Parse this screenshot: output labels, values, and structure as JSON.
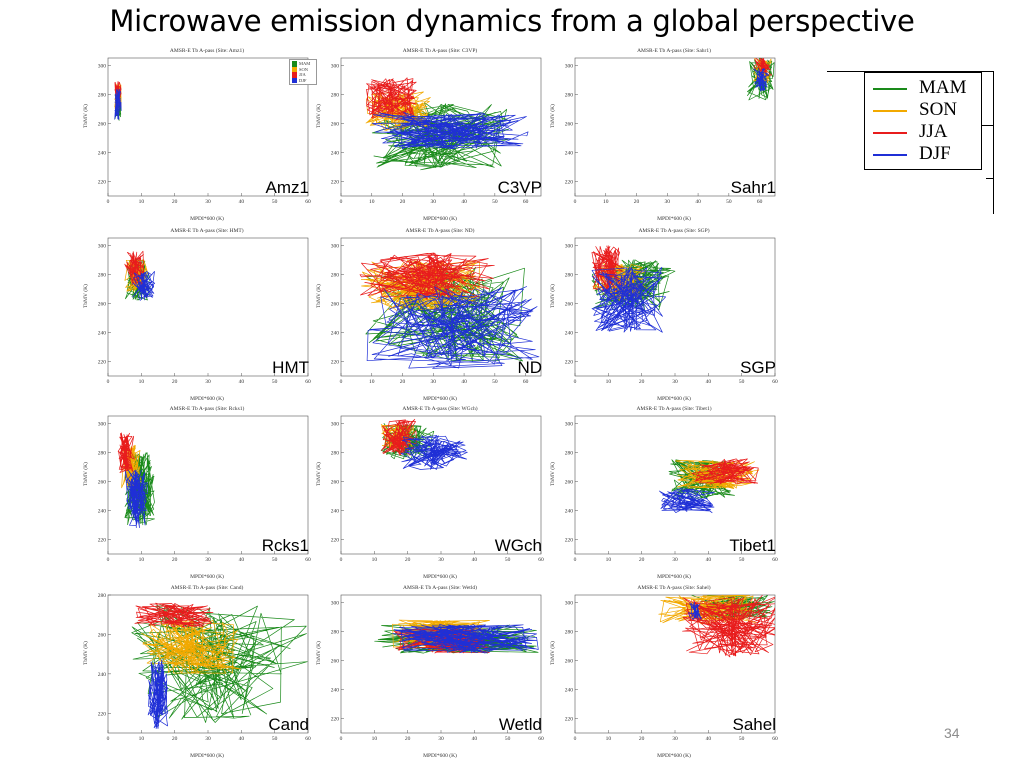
{
  "slide": {
    "title": "Microwave emission dynamics from a global perspective",
    "page_number": "34"
  },
  "legend": {
    "items": [
      {
        "label": "MAM",
        "color": "#1a8a1a"
      },
      {
        "label": "SON",
        "color": "#f2a900"
      },
      {
        "label": "JJA",
        "color": "#e81c1c"
      },
      {
        "label": "DJF",
        "color": "#1f2fd6"
      }
    ]
  },
  "axes": {
    "xlabel": "MPDI*600 (K)",
    "ylabel": "TbMV (K)"
  },
  "chart_data": [
    {
      "type": "line",
      "title": "AMSR-E Tb A-pass (Site: Amz1)",
      "site": "Amz1",
      "xlim": [
        0,
        60
      ],
      "ylim": [
        210,
        305
      ],
      "xticks": [
        0,
        10,
        20,
        30,
        40,
        50,
        60
      ],
      "yticks": [
        220,
        240,
        260,
        280,
        300
      ],
      "mini_legend": true,
      "clusters": {
        "MAM": {
          "x": [
            2,
            4
          ],
          "y": [
            262,
            285
          ]
        },
        "SON": {
          "x": [
            2,
            4
          ],
          "y": [
            270,
            288
          ]
        },
        "JJA": {
          "x": [
            2,
            4
          ],
          "y": [
            270,
            289
          ]
        },
        "DJF": {
          "x": [
            2,
            4
          ],
          "y": [
            262,
            284
          ]
        }
      }
    },
    {
      "type": "line",
      "title": "AMSR-E Tb A-pass (Site: C3VP)",
      "site": "C3VP",
      "xlim": [
        0,
        65
      ],
      "ylim": [
        210,
        305
      ],
      "xticks": [
        0,
        10,
        20,
        30,
        40,
        50,
        60
      ],
      "yticks": [
        220,
        240,
        260,
        280,
        300
      ],
      "clusters": {
        "MAM": {
          "x": [
            10,
            55
          ],
          "y": [
            228,
            275
          ]
        },
        "SON": {
          "x": [
            8,
            30
          ],
          "y": [
            255,
            282
          ]
        },
        "JJA": {
          "x": [
            8,
            25
          ],
          "y": [
            262,
            292
          ]
        },
        "DJF": {
          "x": [
            10,
            62
          ],
          "y": [
            242,
            268
          ]
        }
      }
    },
    {
      "type": "line",
      "title": "AMSR-E Tb A-pass (Site: Sahr1)",
      "site": "Sahr1",
      "xlim": [
        0,
        65
      ],
      "ylim": [
        210,
        305
      ],
      "xticks": [
        0,
        10,
        20,
        30,
        40,
        50,
        60
      ],
      "yticks": [
        220,
        240,
        260,
        280,
        300
      ],
      "clusters": {
        "MAM": {
          "x": [
            56,
            65
          ],
          "y": [
            276,
            305
          ]
        },
        "SON": {
          "x": [
            58,
            64
          ],
          "y": [
            288,
            305
          ]
        },
        "JJA": {
          "x": [
            58,
            64
          ],
          "y": [
            293,
            306
          ]
        },
        "DJF": {
          "x": [
            58,
            63
          ],
          "y": [
            282,
            298
          ]
        }
      }
    },
    {
      "type": "line",
      "title": "AMSR-E Tb A-pass (Site: HMT)",
      "site": "HMT",
      "xlim": [
        0,
        60
      ],
      "ylim": [
        210,
        305
      ],
      "xticks": [
        0,
        10,
        20,
        30,
        40,
        50,
        60
      ],
      "yticks": [
        220,
        240,
        260,
        280,
        300
      ],
      "clusters": {
        "MAM": {
          "x": [
            5,
            13
          ],
          "y": [
            262,
            292
          ]
        },
        "SON": {
          "x": [
            5,
            12
          ],
          "y": [
            268,
            290
          ]
        },
        "JJA": {
          "x": [
            5,
            11
          ],
          "y": [
            272,
            296
          ]
        },
        "DJF": {
          "x": [
            7,
            15
          ],
          "y": [
            262,
            282
          ]
        }
      }
    },
    {
      "type": "line",
      "title": "AMSR-E Tb A-pass (Site: ND)",
      "site": "ND",
      "xlim": [
        0,
        65
      ],
      "ylim": [
        210,
        305
      ],
      "xticks": [
        0,
        10,
        20,
        30,
        40,
        50,
        60
      ],
      "yticks": [
        220,
        240,
        260,
        280,
        300
      ],
      "clusters": {
        "MAM": {
          "x": [
            8,
            60
          ],
          "y": [
            220,
            285
          ]
        },
        "SON": {
          "x": [
            6,
            45
          ],
          "y": [
            255,
            290
          ]
        },
        "JJA": {
          "x": [
            6,
            50
          ],
          "y": [
            262,
            295
          ]
        },
        "DJF": {
          "x": [
            8,
            65
          ],
          "y": [
            215,
            272
          ]
        }
      }
    },
    {
      "type": "line",
      "title": "AMSR-E Tb A-pass (Site: SGP)",
      "site": "SGP",
      "xlim": [
        0,
        60
      ],
      "ylim": [
        210,
        305
      ],
      "xticks": [
        0,
        10,
        20,
        30,
        40,
        50,
        60
      ],
      "yticks": [
        220,
        240,
        260,
        280,
        300
      ],
      "clusters": {
        "MAM": {
          "x": [
            5,
            30
          ],
          "y": [
            255,
            290
          ]
        },
        "SON": {
          "x": [
            5,
            22
          ],
          "y": [
            262,
            288
          ]
        },
        "JJA": {
          "x": [
            5,
            15
          ],
          "y": [
            268,
            300
          ]
        },
        "DJF": {
          "x": [
            5,
            28
          ],
          "y": [
            240,
            285
          ]
        }
      }
    },
    {
      "type": "line",
      "title": "AMSR-E Tb A-pass (Site: Rcks1)",
      "site": "Rcks1",
      "xlim": [
        0,
        60
      ],
      "ylim": [
        210,
        305
      ],
      "xticks": [
        0,
        10,
        20,
        30,
        40,
        50,
        60
      ],
      "yticks": [
        220,
        240,
        260,
        280,
        300
      ],
      "clusters": {
        "MAM": {
          "x": [
            5,
            14
          ],
          "y": [
            230,
            280
          ]
        },
        "SON": {
          "x": [
            4,
            10
          ],
          "y": [
            255,
            285
          ]
        },
        "JJA": {
          "x": [
            3,
            8
          ],
          "y": [
            265,
            295
          ]
        },
        "DJF": {
          "x": [
            5,
            12
          ],
          "y": [
            228,
            268
          ]
        }
      }
    },
    {
      "type": "line",
      "title": "AMSR-E Tb A-pass (Site: WGch)",
      "site": "WGch",
      "xlim": [
        0,
        60
      ],
      "ylim": [
        210,
        305
      ],
      "xticks": [
        0,
        10,
        20,
        30,
        40,
        50,
        60
      ],
      "yticks": [
        220,
        240,
        260,
        280,
        300
      ],
      "clusters": {
        "MAM": {
          "x": [
            12,
            28
          ],
          "y": [
            275,
            300
          ]
        },
        "SON": {
          "x": [
            12,
            22
          ],
          "y": [
            282,
            300
          ]
        },
        "JJA": {
          "x": [
            12,
            23
          ],
          "y": [
            278,
            303
          ]
        },
        "DJF": {
          "x": [
            18,
            38
          ],
          "y": [
            268,
            292
          ]
        }
      }
    },
    {
      "type": "line",
      "title": "AMSR-E Tb A-pass (Site: Tibet1)",
      "site": "Tibet1",
      "xlim": [
        0,
        60
      ],
      "ylim": [
        210,
        305
      ],
      "xticks": [
        0,
        10,
        20,
        30,
        40,
        50,
        60
      ],
      "yticks": [
        220,
        240,
        260,
        280,
        300
      ],
      "clusters": {
        "MAM": {
          "x": [
            28,
            48
          ],
          "y": [
            248,
            275
          ]
        },
        "SON": {
          "x": [
            30,
            57
          ],
          "y": [
            255,
            275
          ]
        },
        "JJA": {
          "x": [
            34,
            55
          ],
          "y": [
            258,
            276
          ]
        },
        "DJF": {
          "x": [
            25,
            42
          ],
          "y": [
            238,
            255
          ]
        }
      }
    },
    {
      "type": "line",
      "title": "AMSR-E Tb A-pass (Site: Cand)",
      "site": "Cand",
      "xlim": [
        0,
        60
      ],
      "ylim": [
        210,
        280
      ],
      "xticks": [
        0,
        10,
        20,
        30,
        40,
        50,
        60
      ],
      "yticks": [
        220,
        240,
        260,
        280
      ],
      "clusters": {
        "MAM": {
          "x": [
            5,
            60
          ],
          "y": [
            215,
            275
          ]
        },
        "SON": {
          "x": [
            10,
            40
          ],
          "y": [
            240,
            268
          ]
        },
        "JJA": {
          "x": [
            8,
            32
          ],
          "y": [
            263,
            276
          ]
        },
        "DJF": {
          "x": [
            12,
            18
          ],
          "y": [
            212,
            248
          ]
        }
      }
    },
    {
      "type": "line",
      "title": "AMSR-E Tb A-pass (Site: Wetld)",
      "site": "Wetld",
      "xlim": [
        0,
        60
      ],
      "ylim": [
        210,
        305
      ],
      "xticks": [
        0,
        10,
        20,
        30,
        40,
        50,
        60
      ],
      "yticks": [
        220,
        240,
        260,
        280,
        300
      ],
      "clusters": {
        "MAM": {
          "x": [
            10,
            60
          ],
          "y": [
            265,
            285
          ]
        },
        "SON": {
          "x": [
            15,
            45
          ],
          "y": [
            268,
            288
          ]
        },
        "JJA": {
          "x": [
            15,
            45
          ],
          "y": [
            265,
            282
          ]
        },
        "DJF": {
          "x": [
            15,
            60
          ],
          "y": [
            265,
            285
          ]
        }
      }
    },
    {
      "type": "line",
      "title": "AMSR-E Tb A-pass (Site: Sahel)",
      "site": "Sahel",
      "xlim": [
        0,
        60
      ],
      "ylim": [
        210,
        305
      ],
      "xticks": [
        0,
        10,
        20,
        30,
        40,
        50,
        60
      ],
      "yticks": [
        220,
        240,
        260,
        280,
        300
      ],
      "clusters": {
        "MAM": {
          "x": [
            35,
            60
          ],
          "y": [
            288,
            305
          ]
        },
        "SON": {
          "x": [
            25,
            55
          ],
          "y": [
            285,
            305
          ]
        },
        "JJA": {
          "x": [
            32,
            62
          ],
          "y": [
            262,
            305
          ]
        },
        "DJF": {
          "x": [
            34,
            38
          ],
          "y": [
            288,
            300
          ]
        }
      }
    }
  ]
}
